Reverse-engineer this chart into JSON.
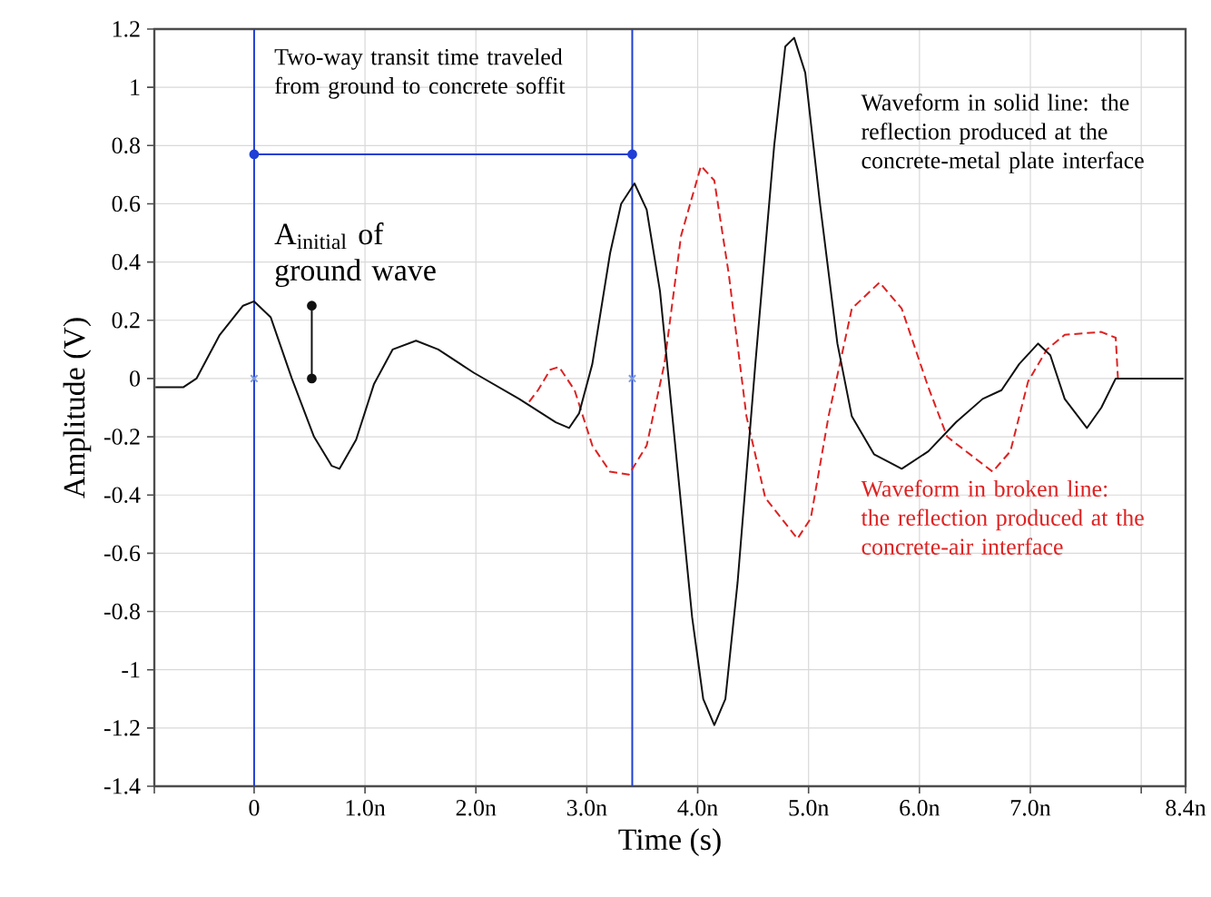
{
  "chart_data": {
    "type": "line",
    "xlabel": "Time (s)",
    "ylabel": "Amplitude (V)",
    "xlim": [
      -0.9,
      8.4
    ],
    "ylim": [
      -1.4,
      1.2
    ],
    "xticks": [
      {
        "value": -0.9,
        "label": null
      },
      0,
      {
        "value": 1,
        "label": "1.0n"
      },
      {
        "value": 2,
        "label": "2.0n"
      },
      {
        "value": 3,
        "label": "3.0n"
      },
      {
        "value": 4,
        "label": "4.0n"
      },
      {
        "value": 5,
        "label": "5.0n"
      },
      {
        "value": 6,
        "label": "6.0n"
      },
      {
        "value": 7,
        "label": "7.0n"
      },
      {
        "value": 8,
        "label": null
      },
      {
        "value": 8.4,
        "label": "8.4n"
      }
    ],
    "yticks": [
      -1.4,
      -1.2,
      -1,
      -0.8,
      -0.6,
      -0.4,
      -0.2,
      0,
      0.2,
      0.4,
      0.6,
      0.8,
      1,
      1.2
    ],
    "grid": true,
    "series": [
      {
        "color": "#dd2222",
        "line_style": "dashed",
        "x": [
          2.48,
          2.56,
          2.67,
          2.75,
          2.89,
          3.05,
          3.21,
          3.38,
          3.54,
          3.7,
          3.85,
          4.03,
          4.15,
          4.28,
          4.44,
          4.61,
          4.9,
          5.02,
          5.18,
          5.39,
          5.64,
          5.84,
          6.08,
          6.25,
          6.66,
          6.82,
          6.98,
          7.15,
          7.31,
          7.64,
          7.77,
          7.79
        ],
        "values": [
          -0.08,
          -0.04,
          0.03,
          0.04,
          -0.04,
          -0.23,
          -0.32,
          -0.33,
          -0.23,
          0.05,
          0.49,
          0.73,
          0.68,
          0.36,
          -0.13,
          -0.41,
          -0.55,
          -0.48,
          -0.13,
          0.24,
          0.33,
          0.24,
          -0.03,
          -0.2,
          -0.32,
          -0.25,
          -0.01,
          0.1,
          0.15,
          0.16,
          0.14,
          0
        ]
      },
      {
        "color": "#111111",
        "line_style": "solid",
        "x": [
          -0.89,
          -0.64,
          -0.52,
          -0.31,
          -0.1,
          0,
          0.15,
          0.34,
          0.54,
          0.7,
          0.77,
          0.92,
          1.08,
          1.25,
          1.46,
          1.66,
          1.98,
          2.39,
          2.72,
          2.84,
          2.93,
          3.05,
          3.21,
          3.31,
          3.43,
          3.54,
          3.66,
          3.79,
          3.95,
          4.05,
          4.15,
          4.25,
          4.36,
          4.52,
          4.69,
          4.79,
          4.87,
          4.97,
          5.1,
          5.26,
          5.39,
          5.59,
          5.84,
          6.08,
          6.33,
          6.57,
          6.74,
          6.9,
          7.07,
          7.18,
          7.31,
          7.51,
          7.64,
          7.77,
          8.38
        ],
        "values": [
          -0.03,
          -0.03,
          0,
          0.15,
          0.25,
          0.265,
          0.21,
          0,
          -0.2,
          -0.3,
          -0.31,
          -0.21,
          -0.02,
          0.1,
          0.13,
          0.1,
          0.02,
          -0.07,
          -0.15,
          -0.17,
          -0.12,
          0.05,
          0.43,
          0.6,
          0.67,
          0.58,
          0.3,
          -0.2,
          -0.82,
          -1.1,
          -1.19,
          -1.1,
          -0.7,
          0.05,
          0.8,
          1.14,
          1.17,
          1.05,
          0.61,
          0.12,
          -0.13,
          -0.26,
          -0.31,
          -0.25,
          -0.15,
          -0.07,
          -0.04,
          0.05,
          0.12,
          0.08,
          -0.07,
          -0.17,
          -0.1,
          0,
          0
        ]
      },
      {
        "type": "line",
        "color": "#1f3fd6",
        "marker": "circle",
        "x": [
          0,
          3.41
        ],
        "values": [
          0.77,
          0.77
        ]
      },
      {
        "type": "line",
        "color": "#111111",
        "marker": "circle",
        "x": [
          0.52,
          0.52
        ],
        "values": [
          0,
          0.25
        ]
      },
      {
        "type": "scatter",
        "color": "#7a9ad8",
        "marker": "cross",
        "x": [
          0,
          3.41
        ],
        "values": [
          0,
          0
        ]
      }
    ],
    "ref_lines": [
      {
        "axis": "x",
        "value": 0,
        "color": "#1f3fd6"
      },
      {
        "axis": "x",
        "value": 3.41,
        "color": "#1f3fd6"
      }
    ],
    "annotations": [
      "Two-way transit time traveled from ground to concrete soffit",
      "A$_{initial}$ of ground wave",
      "Waveform in solid line: the reflection produced at the concrete-metal plate interface",
      "Waveform in broken line: the reflection produced at the concrete-air interface"
    ]
  }
}
